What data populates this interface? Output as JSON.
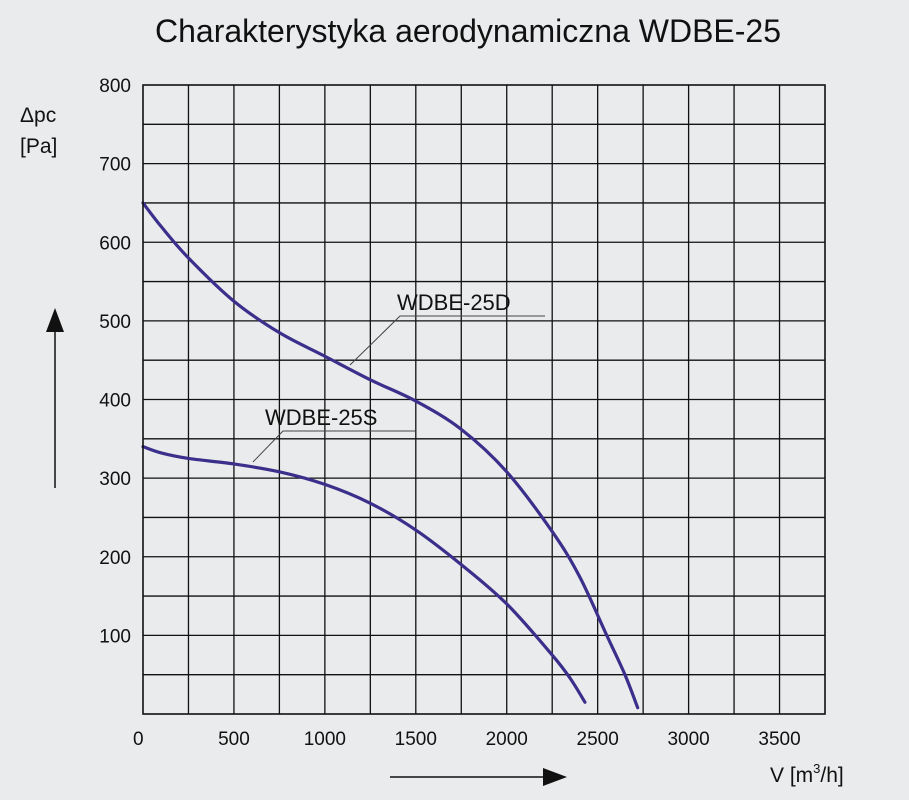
{
  "chart_data": {
    "type": "line",
    "title": "Charakterystyka aerodynamiczna WDBE-25",
    "ylabel_line1": "Δpc",
    "ylabel_line2": "[Pa]",
    "xlabel": "V [m³/h]",
    "xlabel_base": "V [m",
    "xlabel_sup": "3",
    "xlabel_tail": "/h]",
    "xlim": [
      0,
      3750
    ],
    "ylim": [
      0,
      800
    ],
    "x_ticks": [
      0,
      500,
      1000,
      1500,
      2000,
      2500,
      3000,
      3500
    ],
    "y_ticks": [
      100,
      200,
      300,
      400,
      500,
      600,
      700,
      800
    ],
    "grid": true,
    "series": [
      {
        "name": "WDBE-25D",
        "color": "#3b2f8c",
        "x": [
          0,
          100,
          250,
          500,
          750,
          1000,
          1250,
          1500,
          1750,
          2000,
          2250,
          2400,
          2550,
          2650,
          2720
        ],
        "y": [
          650,
          620,
          580,
          525,
          485,
          455,
          425,
          398,
          362,
          308,
          232,
          175,
          100,
          50,
          8
        ]
      },
      {
        "name": "WDBE-25S",
        "color": "#3b2f8c",
        "x": [
          0,
          100,
          250,
          500,
          750,
          1000,
          1250,
          1500,
          1750,
          2000,
          2250,
          2350,
          2430
        ],
        "y": [
          340,
          332,
          325,
          318,
          308,
          292,
          268,
          234,
          190,
          140,
          75,
          45,
          15
        ]
      }
    ]
  }
}
